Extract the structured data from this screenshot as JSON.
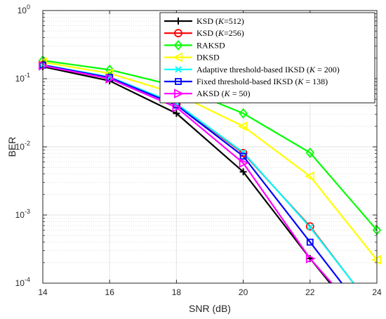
{
  "chart_data": {
    "type": "line",
    "xlabel": "SNR (dB)",
    "ylabel": "BER",
    "x": [
      14,
      16,
      18,
      20,
      22,
      24
    ],
    "xlim": [
      14,
      24
    ],
    "ylim": [
      0.0001,
      1
    ],
    "yscale": "log",
    "grid": true,
    "legend": "top-right",
    "xticks": [
      "14",
      "16",
      "18",
      "20",
      "22",
      "24"
    ],
    "yticks": [
      {
        "base": "10",
        "exp": "0",
        "value": 1
      },
      {
        "base": "10",
        "exp": "-1",
        "value": 0.1
      },
      {
        "base": "10",
        "exp": "-2",
        "value": 0.01
      },
      {
        "base": "10",
        "exp": "-3",
        "value": 0.001
      },
      {
        "base": "10",
        "exp": "-4",
        "value": 0.0001
      }
    ],
    "series": [
      {
        "name": "KSD (K=512)",
        "label": {
          "pre": "KSD (",
          "k": "K",
          "post": "=512)"
        },
        "color": "#000000",
        "marker": "plus",
        "x": [
          14,
          16,
          18,
          20,
          22,
          22.6
        ],
        "values": [
          0.15,
          0.093,
          0.031,
          0.0043,
          0.00023,
          0.0001
        ]
      },
      {
        "name": "KSD (K=256)",
        "label": {
          "pre": "KSD (",
          "k": "K",
          "post": "=256)"
        },
        "color": "#ff0000",
        "marker": "circle",
        "x": [
          14,
          16,
          18,
          20,
          22,
          23.3
        ],
        "values": [
          0.16,
          0.105,
          0.042,
          0.0081,
          0.00068,
          0.0001
        ]
      },
      {
        "name": "RAKSD",
        "label": {
          "pre": "RAKSD",
          "k": "",
          "post": ""
        },
        "color": "#00ff00",
        "marker": "diamond",
        "x": [
          14,
          16,
          18,
          20,
          22,
          24
        ],
        "values": [
          0.185,
          0.135,
          0.078,
          0.031,
          0.0082,
          0.0006
        ]
      },
      {
        "name": "DKSD",
        "label": {
          "pre": "DKSD",
          "k": "",
          "post": ""
        },
        "color": "#ffff00",
        "marker": "triangle-left",
        "x": [
          14,
          16,
          18,
          20,
          22,
          24
        ],
        "values": [
          0.175,
          0.12,
          0.06,
          0.02,
          0.0037,
          0.00022
        ]
      },
      {
        "name": "Adaptive threshold-based IKSD (K = 200)",
        "label": {
          "pre": "Adaptive threshold-based IKSD (",
          "k": "K",
          "post": " = 200)"
        },
        "color": "#00ffff",
        "marker": "x",
        "x": [
          14,
          16,
          18,
          20,
          22,
          23.3
        ],
        "values": [
          0.16,
          0.106,
          0.043,
          0.0083,
          0.00066,
          0.0001
        ]
      },
      {
        "name": "Fixed threshold-based IKSD (K = 138)",
        "label": {
          "pre": "Fixed threshold-based IKSD (",
          "k": "K",
          "post": " = 138)"
        },
        "color": "#0000ff",
        "marker": "square",
        "x": [
          14,
          16,
          18,
          20,
          22,
          22.95
        ],
        "values": [
          0.158,
          0.104,
          0.041,
          0.0073,
          0.0004,
          0.0001
        ]
      },
      {
        "name": "AKSD (K = 50)",
        "label": {
          "pre": "AKSD (",
          "k": "K",
          "post": " = 50)"
        },
        "color": "#ff00ff",
        "marker": "triangle-right",
        "x": [
          14,
          16,
          18,
          20,
          22,
          22.65
        ],
        "values": [
          0.155,
          0.1,
          0.038,
          0.0058,
          0.00023,
          0.0001
        ]
      }
    ]
  }
}
